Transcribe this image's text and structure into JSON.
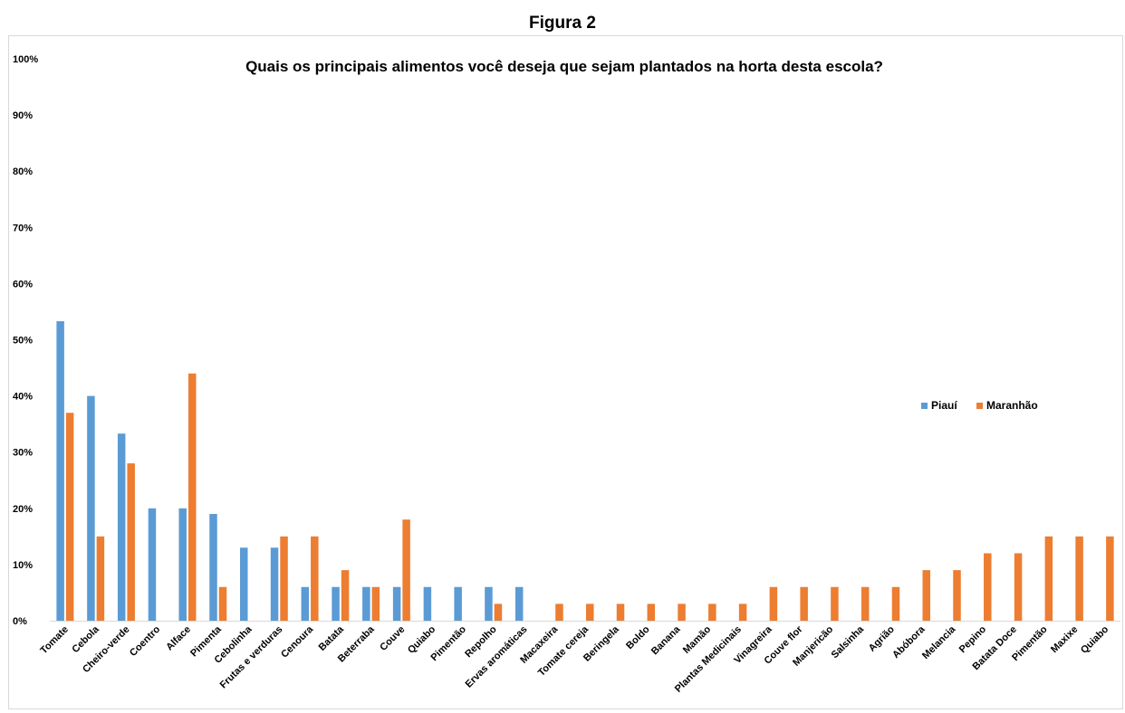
{
  "figure_label": "Figura 2",
  "chart_data": {
    "type": "bar",
    "title": "Quais os principais alimentos você deseja que sejam plantados na horta desta escola?",
    "xlabel": "",
    "ylabel": "",
    "ylim": [
      0,
      100
    ],
    "yticks": [
      "0%",
      "10%",
      "20%",
      "30%",
      "40%",
      "50%",
      "60%",
      "70%",
      "80%",
      "90%",
      "100%"
    ],
    "grid": false,
    "legend_position": "right",
    "categories": [
      "Tomate",
      "Cebola",
      "Cheiro-verde",
      "Coentro",
      "Alface",
      "Pimenta",
      "Cebolinha",
      "Frutas e verduras",
      "Cenoura",
      "Batata",
      "Beterraba",
      "Couve",
      "Quiabo",
      "Pimentão",
      "Repolho",
      "Ervas aromáticas",
      "Macaxeira",
      "Tomate cereja",
      "Beringela",
      "Boldo",
      "Banana",
      "Mamão",
      "Plantas Medicinais",
      "Vinagreira",
      "Couve flor",
      "Manjericão",
      "Salsinha",
      "Agrião",
      "Abóbora",
      "Melancia",
      "Pepino",
      "Batata Doce",
      "Pimentão",
      "Maxixe",
      "Quiabo"
    ],
    "series": [
      {
        "name": "Piauí",
        "color": "#5b9bd5",
        "values": [
          53.3,
          40,
          33.3,
          20,
          20,
          19,
          13,
          13,
          6,
          6,
          6,
          6,
          6,
          6,
          6,
          6,
          null,
          null,
          null,
          null,
          null,
          null,
          null,
          null,
          null,
          null,
          null,
          null,
          null,
          null,
          null,
          null,
          null,
          null,
          null
        ]
      },
      {
        "name": "Maranhão",
        "color": "#ed7d31",
        "values": [
          37,
          15,
          28,
          null,
          44,
          6,
          null,
          15,
          15,
          9,
          6,
          18,
          null,
          null,
          3,
          null,
          3,
          3,
          3,
          3,
          3,
          3,
          3,
          6,
          6,
          6,
          6,
          6,
          9,
          9,
          12,
          12,
          15,
          15,
          15
        ]
      }
    ]
  }
}
